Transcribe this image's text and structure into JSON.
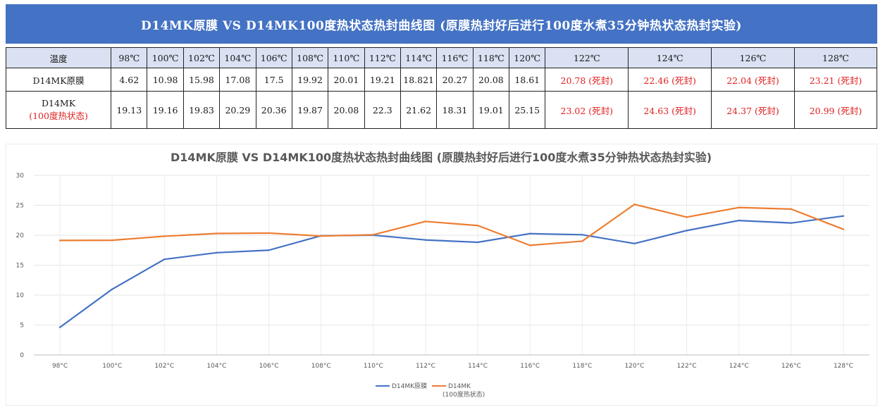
{
  "title": "D14MK原膜 VS D14MK100度热状态热封曲线图  (原膜热封好后进行100度水煮35分钟热状态热封实验)",
  "table": {
    "header_label": "温度",
    "temperatures": [
      "98℃",
      "100℃",
      "102℃",
      "104℃",
      "106℃",
      "108℃",
      "110℃",
      "112℃",
      "114℃",
      "116℃",
      "118℃",
      "120℃",
      "122℃",
      "124℃",
      "126℃",
      "128℃"
    ],
    "rows": [
      {
        "label": "D14MK原膜",
        "cells": [
          "4.62",
          "10.98",
          "15.98",
          "17.08",
          "17.5",
          "19.92",
          "20.01",
          "19.21",
          "18.821",
          "20.27",
          "20.08",
          "18.61",
          "20.78 (死封)",
          "22.46 (死封)",
          "22.04 (死封)",
          "23.21 (死封)"
        ]
      },
      {
        "label": "D14MK",
        "sublabel": "(100度热状态)",
        "cells": [
          "19.13",
          "19.16",
          "19.83",
          "20.29",
          "20.36",
          "19.87",
          "20.08",
          "22.3",
          "21.62",
          "18.31",
          "19.01",
          "25.15",
          "23.02 (死封)",
          "24.63 (死封)",
          "24.37 (死封)",
          "20.99 (死封)"
        ]
      }
    ]
  },
  "chart_data": {
    "type": "line",
    "title": "D14MK原膜 VS D14MK100度热状态热封曲线图 (原膜热封好后进行100度水煮35分钟热状态热封实验)",
    "categories": [
      "98°C",
      "100°C",
      "102°C",
      "104°C",
      "106°C",
      "108°C",
      "110°C",
      "112°C",
      "114°C",
      "116°C",
      "118°C",
      "120°C",
      "122°C",
      "124°C",
      "126°C",
      "128°C"
    ],
    "series": [
      {
        "name": "D14MK原膜",
        "color": "#4472c4",
        "values": [
          4.62,
          10.98,
          15.98,
          17.08,
          17.5,
          19.92,
          20.01,
          19.21,
          18.821,
          20.27,
          20.08,
          18.61,
          20.78,
          22.46,
          22.04,
          23.21
        ]
      },
      {
        "name": "D14MK",
        "name_line2": "(100度热状态)",
        "color": "#ed7d31",
        "values": [
          19.13,
          19.16,
          19.83,
          20.29,
          20.36,
          19.87,
          20.08,
          22.3,
          21.62,
          18.31,
          19.01,
          25.15,
          23.02,
          24.63,
          24.37,
          20.99
        ]
      }
    ],
    "yticks": [
      0,
      5,
      10,
      15,
      20,
      25,
      30
    ],
    "ylim": [
      0,
      30
    ],
    "grid": true,
    "legend_position": "bottom"
  },
  "colors": {
    "banner": "#4472c4",
    "header_row": "#d9e1f2",
    "sealed_text": "#e02020"
  }
}
